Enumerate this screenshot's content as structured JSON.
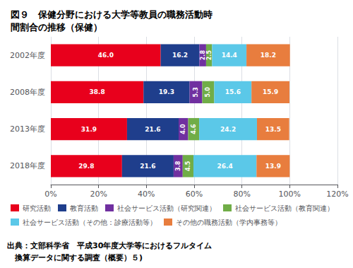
{
  "chart_data": {
    "type": "bar",
    "orientation": "horizontal",
    "stacked": true,
    "title": "図９　保健分野における大学等教員の職務活動時\n間割合の推移（保健）",
    "categories": [
      "2002年度",
      "2008年度",
      "2013年度",
      "2018年度"
    ],
    "series": [
      {
        "name": "研究活動",
        "color": "#e8001c",
        "values": [
          46.0,
          38.8,
          31.9,
          29.8
        ],
        "value_labels": [
          "46.0",
          "38.8",
          "31.9",
          "29.8"
        ]
      },
      {
        "name": "教育活動",
        "color": "#1f3e8c",
        "values": [
          16.2,
          19.3,
          21.6,
          21.6
        ],
        "value_labels": [
          "16.2",
          "19.3",
          "21.6",
          "21.6"
        ]
      },
      {
        "name": "社会サービス活動（研究関連）",
        "color": "#7030a0",
        "values": [
          2.8,
          5.3,
          4.0,
          3.8
        ],
        "value_labels": [
          "2.8",
          "5.3",
          "4.0",
          "3.8"
        ]
      },
      {
        "name": "社会サービス活動（教育関連）",
        "color": "#70ad47",
        "values": [
          2.5,
          5.0,
          4.6,
          4.5
        ],
        "value_labels": [
          "2.5",
          "5.0",
          "4.6",
          "4.5"
        ]
      },
      {
        "name": "社会サービス活動（その他：診療活動等）",
        "color": "#5bc8e8",
        "values": [
          14.4,
          15.6,
          24.2,
          26.4
        ],
        "value_labels": [
          "14.4",
          "15.6",
          "24.2",
          "26.4"
        ]
      },
      {
        "name": "その他の職務活動（学内事務等）",
        "color": "#e87d3e",
        "values": [
          18.2,
          15.9,
          13.5,
          13.9
        ],
        "value_labels": [
          "18.2",
          "15.9",
          "13.5",
          "13.9"
        ]
      }
    ],
    "xlim": [
      0,
      120
    ],
    "xticks": [
      {
        "value": 0,
        "label": "0%"
      },
      {
        "value": 20,
        "label": "20%"
      },
      {
        "value": 40,
        "label": "40%"
      },
      {
        "value": 60,
        "label": "60%"
      },
      {
        "value": 80,
        "label": "80%"
      },
      {
        "value": 100,
        "label": "100%"
      },
      {
        "value": 120,
        "label": "120%"
      }
    ],
    "grid": true,
    "data_labels": true,
    "legend": "bottom",
    "annotations": [
      "出典：文部科学省　平成30年度大学等におけるフルタイム",
      "　換算データに関する調査（概要）５)"
    ]
  }
}
